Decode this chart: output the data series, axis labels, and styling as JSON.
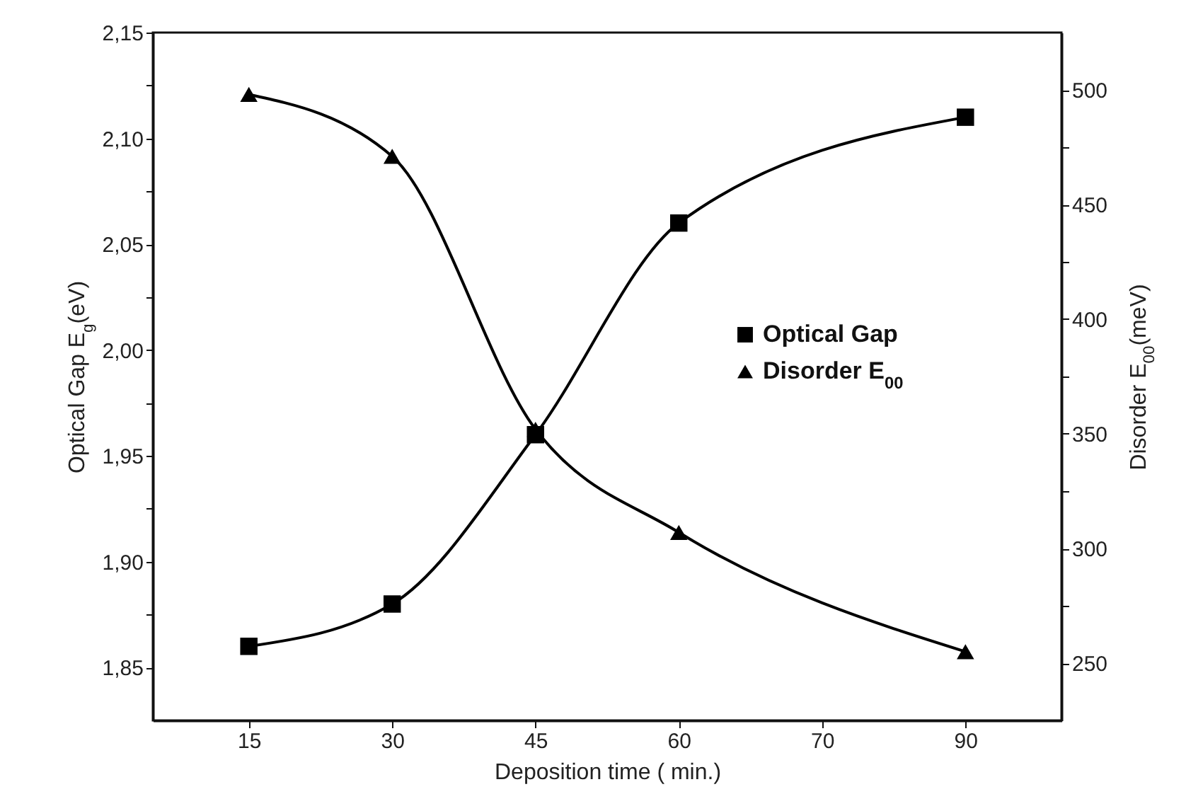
{
  "chart_data": {
    "type": "line",
    "xlabel": "Deposition time ( min.)",
    "ylabel": "Optical Gap E$_{g}$(eV)",
    "y2label": "Disorder E$_{00}$(meV)",
    "categories": [
      "15",
      "30",
      "45",
      "60",
      "70",
      "90"
    ],
    "ylim": [
      1.825,
      2.15
    ],
    "yticks": [
      {
        "value": 1.85,
        "label": "1,85"
      },
      {
        "value": 1.875,
        "label": null
      },
      {
        "value": 1.9,
        "label": "1,90"
      },
      {
        "value": 1.925,
        "label": null
      },
      {
        "value": 1.95,
        "label": "1,95"
      },
      {
        "value": 1.975,
        "label": null
      },
      {
        "value": 2.0,
        "label": "2,00"
      },
      {
        "value": 2.025,
        "label": null
      },
      {
        "value": 2.05,
        "label": "2,05"
      },
      {
        "value": 2.075,
        "label": null
      },
      {
        "value": 2.1,
        "label": "2,10"
      },
      {
        "value": 2.125,
        "label": null
      },
      {
        "value": 2.15,
        "label": "2,15"
      }
    ],
    "y2lim": [
      225,
      525
    ],
    "y2ticks": [
      250,
      {
        "value": 275,
        "label": null
      },
      300,
      {
        "value": 325,
        "label": null
      },
      350,
      {
        "value": 375,
        "label": null
      },
      400,
      {
        "value": 425,
        "label": null
      },
      450,
      {
        "value": 475,
        "label": null
      },
      500
    ],
    "grid": false,
    "legend": "right",
    "line_style": "solid",
    "series": [
      {
        "name": "Optical Gap",
        "color": "#000000",
        "marker": "square",
        "values": [
          1.86,
          1.88,
          1.96,
          2.06,
          null,
          2.11
        ]
      },
      {
        "name": "Disorder E$_{00}$",
        "color": "#000000",
        "marker": "triangle",
        "axis": "y2",
        "values": [
          498,
          471,
          352,
          307,
          null,
          255
        ]
      }
    ]
  }
}
